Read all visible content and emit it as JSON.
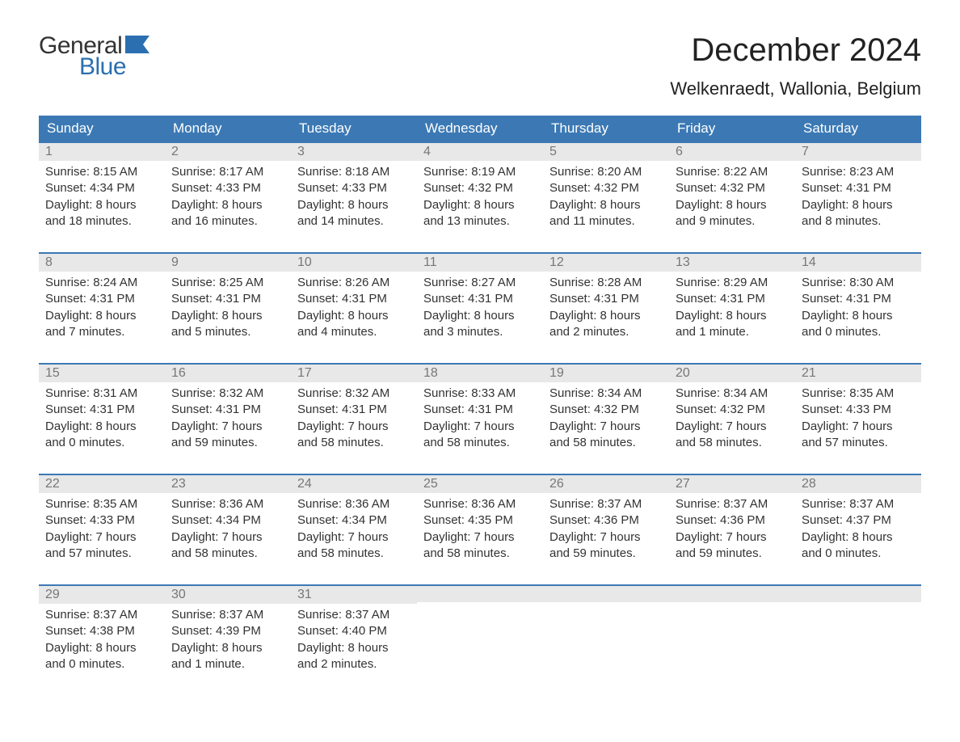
{
  "logo": {
    "text_general": "General",
    "text_blue": "Blue",
    "flag_color": "#2b6fb0"
  },
  "header": {
    "month_title": "December 2024",
    "location": "Welkenraedt, Wallonia, Belgium"
  },
  "colors": {
    "header_bg": "#3c79b4",
    "header_text": "#ffffff",
    "daynum_band": "#e8e8e8",
    "daynum_text": "#777777",
    "rule": "#3c79b4",
    "body_text": "#333333",
    "background": "#ffffff"
  },
  "fonts": {
    "body_size_pt": 11,
    "header_size_pt": 13,
    "title_size_pt": 30,
    "location_size_pt": 17
  },
  "calendar": {
    "type": "table",
    "day_names": [
      "Sunday",
      "Monday",
      "Tuesday",
      "Wednesday",
      "Thursday",
      "Friday",
      "Saturday"
    ],
    "weeks": [
      [
        {
          "n": "1",
          "sr": "Sunrise: 8:15 AM",
          "ss": "Sunset: 4:34 PM",
          "d1": "Daylight: 8 hours",
          "d2": "and 18 minutes."
        },
        {
          "n": "2",
          "sr": "Sunrise: 8:17 AM",
          "ss": "Sunset: 4:33 PM",
          "d1": "Daylight: 8 hours",
          "d2": "and 16 minutes."
        },
        {
          "n": "3",
          "sr": "Sunrise: 8:18 AM",
          "ss": "Sunset: 4:33 PM",
          "d1": "Daylight: 8 hours",
          "d2": "and 14 minutes."
        },
        {
          "n": "4",
          "sr": "Sunrise: 8:19 AM",
          "ss": "Sunset: 4:32 PM",
          "d1": "Daylight: 8 hours",
          "d2": "and 13 minutes."
        },
        {
          "n": "5",
          "sr": "Sunrise: 8:20 AM",
          "ss": "Sunset: 4:32 PM",
          "d1": "Daylight: 8 hours",
          "d2": "and 11 minutes."
        },
        {
          "n": "6",
          "sr": "Sunrise: 8:22 AM",
          "ss": "Sunset: 4:32 PM",
          "d1": "Daylight: 8 hours",
          "d2": "and 9 minutes."
        },
        {
          "n": "7",
          "sr": "Sunrise: 8:23 AM",
          "ss": "Sunset: 4:31 PM",
          "d1": "Daylight: 8 hours",
          "d2": "and 8 minutes."
        }
      ],
      [
        {
          "n": "8",
          "sr": "Sunrise: 8:24 AM",
          "ss": "Sunset: 4:31 PM",
          "d1": "Daylight: 8 hours",
          "d2": "and 7 minutes."
        },
        {
          "n": "9",
          "sr": "Sunrise: 8:25 AM",
          "ss": "Sunset: 4:31 PM",
          "d1": "Daylight: 8 hours",
          "d2": "and 5 minutes."
        },
        {
          "n": "10",
          "sr": "Sunrise: 8:26 AM",
          "ss": "Sunset: 4:31 PM",
          "d1": "Daylight: 8 hours",
          "d2": "and 4 minutes."
        },
        {
          "n": "11",
          "sr": "Sunrise: 8:27 AM",
          "ss": "Sunset: 4:31 PM",
          "d1": "Daylight: 8 hours",
          "d2": "and 3 minutes."
        },
        {
          "n": "12",
          "sr": "Sunrise: 8:28 AM",
          "ss": "Sunset: 4:31 PM",
          "d1": "Daylight: 8 hours",
          "d2": "and 2 minutes."
        },
        {
          "n": "13",
          "sr": "Sunrise: 8:29 AM",
          "ss": "Sunset: 4:31 PM",
          "d1": "Daylight: 8 hours",
          "d2": "and 1 minute."
        },
        {
          "n": "14",
          "sr": "Sunrise: 8:30 AM",
          "ss": "Sunset: 4:31 PM",
          "d1": "Daylight: 8 hours",
          "d2": "and 0 minutes."
        }
      ],
      [
        {
          "n": "15",
          "sr": "Sunrise: 8:31 AM",
          "ss": "Sunset: 4:31 PM",
          "d1": "Daylight: 8 hours",
          "d2": "and 0 minutes."
        },
        {
          "n": "16",
          "sr": "Sunrise: 8:32 AM",
          "ss": "Sunset: 4:31 PM",
          "d1": "Daylight: 7 hours",
          "d2": "and 59 minutes."
        },
        {
          "n": "17",
          "sr": "Sunrise: 8:32 AM",
          "ss": "Sunset: 4:31 PM",
          "d1": "Daylight: 7 hours",
          "d2": "and 58 minutes."
        },
        {
          "n": "18",
          "sr": "Sunrise: 8:33 AM",
          "ss": "Sunset: 4:31 PM",
          "d1": "Daylight: 7 hours",
          "d2": "and 58 minutes."
        },
        {
          "n": "19",
          "sr": "Sunrise: 8:34 AM",
          "ss": "Sunset: 4:32 PM",
          "d1": "Daylight: 7 hours",
          "d2": "and 58 minutes."
        },
        {
          "n": "20",
          "sr": "Sunrise: 8:34 AM",
          "ss": "Sunset: 4:32 PM",
          "d1": "Daylight: 7 hours",
          "d2": "and 58 minutes."
        },
        {
          "n": "21",
          "sr": "Sunrise: 8:35 AM",
          "ss": "Sunset: 4:33 PM",
          "d1": "Daylight: 7 hours",
          "d2": "and 57 minutes."
        }
      ],
      [
        {
          "n": "22",
          "sr": "Sunrise: 8:35 AM",
          "ss": "Sunset: 4:33 PM",
          "d1": "Daylight: 7 hours",
          "d2": "and 57 minutes."
        },
        {
          "n": "23",
          "sr": "Sunrise: 8:36 AM",
          "ss": "Sunset: 4:34 PM",
          "d1": "Daylight: 7 hours",
          "d2": "and 58 minutes."
        },
        {
          "n": "24",
          "sr": "Sunrise: 8:36 AM",
          "ss": "Sunset: 4:34 PM",
          "d1": "Daylight: 7 hours",
          "d2": "and 58 minutes."
        },
        {
          "n": "25",
          "sr": "Sunrise: 8:36 AM",
          "ss": "Sunset: 4:35 PM",
          "d1": "Daylight: 7 hours",
          "d2": "and 58 minutes."
        },
        {
          "n": "26",
          "sr": "Sunrise: 8:37 AM",
          "ss": "Sunset: 4:36 PM",
          "d1": "Daylight: 7 hours",
          "d2": "and 59 minutes."
        },
        {
          "n": "27",
          "sr": "Sunrise: 8:37 AM",
          "ss": "Sunset: 4:36 PM",
          "d1": "Daylight: 7 hours",
          "d2": "and 59 minutes."
        },
        {
          "n": "28",
          "sr": "Sunrise: 8:37 AM",
          "ss": "Sunset: 4:37 PM",
          "d1": "Daylight: 8 hours",
          "d2": "and 0 minutes."
        }
      ],
      [
        {
          "n": "29",
          "sr": "Sunrise: 8:37 AM",
          "ss": "Sunset: 4:38 PM",
          "d1": "Daylight: 8 hours",
          "d2": "and 0 minutes."
        },
        {
          "n": "30",
          "sr": "Sunrise: 8:37 AM",
          "ss": "Sunset: 4:39 PM",
          "d1": "Daylight: 8 hours",
          "d2": "and 1 minute."
        },
        {
          "n": "31",
          "sr": "Sunrise: 8:37 AM",
          "ss": "Sunset: 4:40 PM",
          "d1": "Daylight: 8 hours",
          "d2": "and 2 minutes."
        },
        null,
        null,
        null,
        null
      ]
    ]
  }
}
